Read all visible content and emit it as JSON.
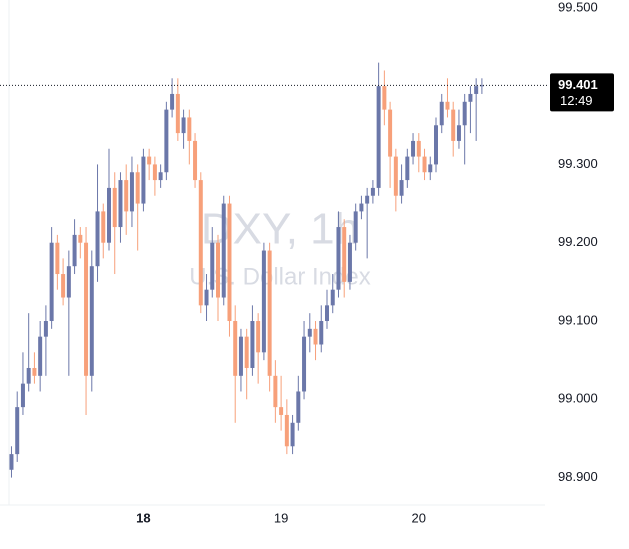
{
  "chart_data": {
    "type": "candlestick",
    "watermark": {
      "title": "DXY, 1h",
      "subtitle": "U.S. Dollar Index"
    },
    "up_color": "#6b77a9",
    "down_color": "#f7a07a",
    "ylim": [
      98.865,
      99.51
    ],
    "yticks": [
      {
        "value": 98.9,
        "label": "98.900"
      },
      {
        "value": 99.0,
        "label": "99.000"
      },
      {
        "value": 99.1,
        "label": "99.100"
      },
      {
        "value": 99.2,
        "label": "99.200"
      },
      {
        "value": 99.3,
        "label": "99.300"
      },
      {
        "value": 99.4,
        "label": "99.400"
      },
      {
        "value": 99.5,
        "label": "99.500"
      }
    ],
    "xlim": [
      -2,
      93
    ],
    "xticks": [
      {
        "value": 23,
        "label": "18"
      },
      {
        "value": 47,
        "label": "19"
      },
      {
        "value": 71,
        "label": "20"
      }
    ],
    "last_price": {
      "value": 99.401,
      "label": "99.401",
      "time": "12:49"
    },
    "candles": [
      [
        98.91,
        98.94,
        98.9,
        98.93
      ],
      [
        98.93,
        99.01,
        98.92,
        98.99
      ],
      [
        98.99,
        99.06,
        98.98,
        99.02
      ],
      [
        99.02,
        99.11,
        99.01,
        99.04
      ],
      [
        99.04,
        99.06,
        99.02,
        99.03
      ],
      [
        99.03,
        99.1,
        99.01,
        99.08
      ],
      [
        99.08,
        99.12,
        99.03,
        99.1
      ],
      [
        99.1,
        99.22,
        99.09,
        99.2
      ],
      [
        99.2,
        99.21,
        99.14,
        99.16
      ],
      [
        99.16,
        99.18,
        99.12,
        99.13
      ],
      [
        99.13,
        99.19,
        99.03,
        99.17
      ],
      [
        99.17,
        99.23,
        99.16,
        99.21
      ],
      [
        99.21,
        99.22,
        99.18,
        99.2
      ],
      [
        99.2,
        99.22,
        98.98,
        99.03
      ],
      [
        99.03,
        99.19,
        99.01,
        99.17
      ],
      [
        99.17,
        99.3,
        99.15,
        99.24
      ],
      [
        99.24,
        99.25,
        99.18,
        99.2
      ],
      [
        99.2,
        99.32,
        99.19,
        99.27
      ],
      [
        99.27,
        99.29,
        99.16,
        99.22
      ],
      [
        99.22,
        99.29,
        99.2,
        99.28
      ],
      [
        99.28,
        99.3,
        99.21,
        99.24
      ],
      [
        99.24,
        99.31,
        99.22,
        99.29
      ],
      [
        99.29,
        99.3,
        99.19,
        99.25
      ],
      [
        99.25,
        99.32,
        99.24,
        99.31
      ],
      [
        99.31,
        99.32,
        99.28,
        99.3
      ],
      [
        99.3,
        99.31,
        99.26,
        99.28
      ],
      [
        99.28,
        99.3,
        99.27,
        99.29
      ],
      [
        99.29,
        99.38,
        99.28,
        99.37
      ],
      [
        99.37,
        99.41,
        99.36,
        99.39
      ],
      [
        99.39,
        99.41,
        99.33,
        99.34
      ],
      [
        99.34,
        99.37,
        99.32,
        99.36
      ],
      [
        99.36,
        99.37,
        99.3,
        99.33
      ],
      [
        99.33,
        99.34,
        99.27,
        99.28
      ],
      [
        99.28,
        99.29,
        99.11,
        99.12
      ],
      [
        99.12,
        99.16,
        99.1,
        99.14
      ],
      [
        99.14,
        99.22,
        99.13,
        99.2
      ],
      [
        99.2,
        99.21,
        99.1,
        99.13
      ],
      [
        99.13,
        99.26,
        99.12,
        99.25
      ],
      [
        99.25,
        99.26,
        99.08,
        99.1
      ],
      [
        99.1,
        99.12,
        98.97,
        99.03
      ],
      [
        99.03,
        99.09,
        99.01,
        99.08
      ],
      [
        99.08,
        99.09,
        99.0,
        99.04
      ],
      [
        99.04,
        99.12,
        99.03,
        99.1
      ],
      [
        99.1,
        99.11,
        99.02,
        99.06
      ],
      [
        99.06,
        99.2,
        99.05,
        99.19
      ],
      [
        99.19,
        99.2,
        99.01,
        99.03
      ],
      [
        99.03,
        99.05,
        98.97,
        98.99
      ],
      [
        98.99,
        99.03,
        98.96,
        98.98
      ],
      [
        98.98,
        99.0,
        98.93,
        98.94
      ],
      [
        98.94,
        98.98,
        98.93,
        98.97
      ],
      [
        98.97,
        99.03,
        98.96,
        99.01
      ],
      [
        99.01,
        99.1,
        99.0,
        99.08
      ],
      [
        99.08,
        99.11,
        99.06,
        99.09
      ],
      [
        99.09,
        99.1,
        99.05,
        99.07
      ],
      [
        99.07,
        99.12,
        99.06,
        99.1
      ],
      [
        99.1,
        99.14,
        99.09,
        99.12
      ],
      [
        99.12,
        99.16,
        99.11,
        99.14
      ],
      [
        99.14,
        99.24,
        99.13,
        99.22
      ],
      [
        99.22,
        99.23,
        99.13,
        99.15
      ],
      [
        99.15,
        99.21,
        99.14,
        99.2
      ],
      [
        99.2,
        99.25,
        99.19,
        99.24
      ],
      [
        99.24,
        99.26,
        99.23,
        99.25
      ],
      [
        99.25,
        99.27,
        99.18,
        99.26
      ],
      [
        99.26,
        99.28,
        99.25,
        99.27
      ],
      [
        99.27,
        99.43,
        99.26,
        99.4
      ],
      [
        99.4,
        99.42,
        99.35,
        99.37
      ],
      [
        99.37,
        99.38,
        99.27,
        99.31
      ],
      [
        99.31,
        99.32,
        99.24,
        99.26
      ],
      [
        99.26,
        99.3,
        99.25,
        99.28
      ],
      [
        99.28,
        99.32,
        99.27,
        99.31
      ],
      [
        99.31,
        99.34,
        99.3,
        99.33
      ],
      [
        99.33,
        99.34,
        99.29,
        99.31
      ],
      [
        99.31,
        99.32,
        99.28,
        99.29
      ],
      [
        99.29,
        99.31,
        99.28,
        99.3
      ],
      [
        99.3,
        99.36,
        99.29,
        99.35
      ],
      [
        99.35,
        99.39,
        99.34,
        99.38
      ],
      [
        99.38,
        99.41,
        99.36,
        99.37
      ],
      [
        99.37,
        99.38,
        99.31,
        99.33
      ],
      [
        99.33,
        99.37,
        99.32,
        99.35
      ],
      [
        99.35,
        99.39,
        99.3,
        99.38
      ],
      [
        99.38,
        99.4,
        99.34,
        99.39
      ],
      [
        99.39,
        99.41,
        99.33,
        99.4
      ],
      [
        99.4,
        99.41,
        99.39,
        99.401
      ]
    ]
  }
}
